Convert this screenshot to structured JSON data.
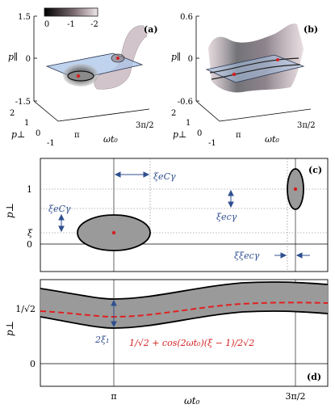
{
  "colorbar": {
    "ticks": [
      "0",
      "-1",
      "-2"
    ]
  },
  "panel_a": {
    "label": "(a)",
    "y_ticks": [
      "1.5",
      "0",
      "-1.5"
    ],
    "y_label": "p∥",
    "depth_ticks": [
      "2",
      "1",
      "0",
      "-1"
    ],
    "depth_label": "p⊥",
    "x_ticks": [
      "π",
      "3π/2"
    ],
    "x_label": "ωt₀"
  },
  "panel_b": {
    "label": "(b)",
    "y_ticks": [
      "0.6",
      "0",
      "-0.6"
    ],
    "y_label": "p∥",
    "depth_ticks": [
      "2",
      "1",
      "0",
      "-1"
    ],
    "depth_label": "p⊥",
    "x_ticks": [
      "π",
      "3π/2"
    ],
    "x_label": "ωt₀"
  },
  "panel_c": {
    "label": "(c)",
    "y_label": "p⊥",
    "y_ticks": [
      "1",
      "ξ",
      "0"
    ],
    "ann_xi_C_top": "ξeCγ",
    "ann_xi_C_left": "ξeCγ",
    "ann_xi_c_right": "ξecγ",
    "ann_xixi_c": "ξξecγ"
  },
  "panel_d": {
    "label": "(d)",
    "y_label": "p⊥",
    "y_ticks": [
      "1/√2",
      "0"
    ],
    "x_ticks": [
      "π",
      "3π/2"
    ],
    "x_label": "ωt₀",
    "ann_width": "2ξ₁",
    "formula": "1/√2 + cos(2ωt₀)(ξ − 1)/2√2"
  }
}
